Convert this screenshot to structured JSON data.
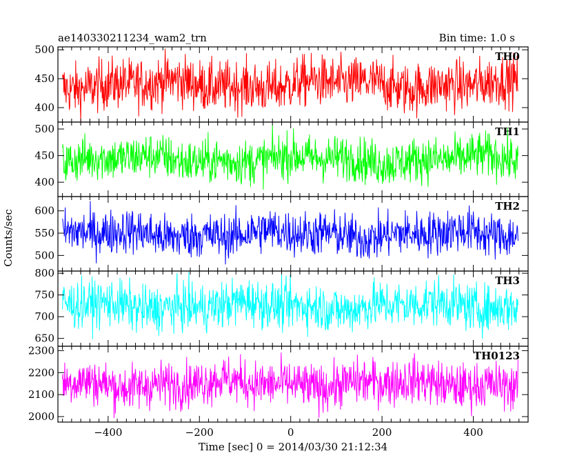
{
  "header": {
    "title": "ae140330211234_wam2_trn",
    "bin_time": "Bin time: 1.0 s"
  },
  "chart_data": {
    "type": "line",
    "title": "ae140330211234_wam2_trn",
    "xlabel": "Time [sec] 0 = 2014/03/30 21:12:34",
    "ylabel": "Counts/sec",
    "xlim": [
      -510,
      520
    ],
    "x_ticks": [
      -400,
      -200,
      0,
      200,
      400
    ],
    "x_range": [
      -500,
      498
    ],
    "bin_time_s": 1.0,
    "grid": false,
    "panels": [
      {
        "name": "TH0",
        "color": "#ff0000",
        "ylim": [
          375,
          505
        ],
        "yticks": [
          400,
          450,
          500
        ],
        "mean": 440,
        "spread": 22
      },
      {
        "name": "TH1",
        "color": "#00ff00",
        "ylim": [
          373,
          513
        ],
        "yticks": [
          400,
          450,
          500
        ],
        "mean": 443,
        "spread": 21
      },
      {
        "name": "TH2",
        "color": "#0000ff",
        "ylim": [
          465,
          632
        ],
        "yticks": [
          500,
          550,
          600
        ],
        "mean": 548,
        "spread": 25
      },
      {
        "name": "TH3",
        "color": "#00ffff",
        "ylim": [
          632,
          805
        ],
        "yticks": [
          650,
          700,
          750,
          800
        ],
        "mean": 725,
        "spread": 27
      },
      {
        "name": "TH0123",
        "color": "#ff00ff",
        "ylim": [
          1975,
          2320
        ],
        "yticks": [
          2000,
          2100,
          2200,
          2300
        ],
        "mean": 2150,
        "spread": 52
      }
    ]
  }
}
